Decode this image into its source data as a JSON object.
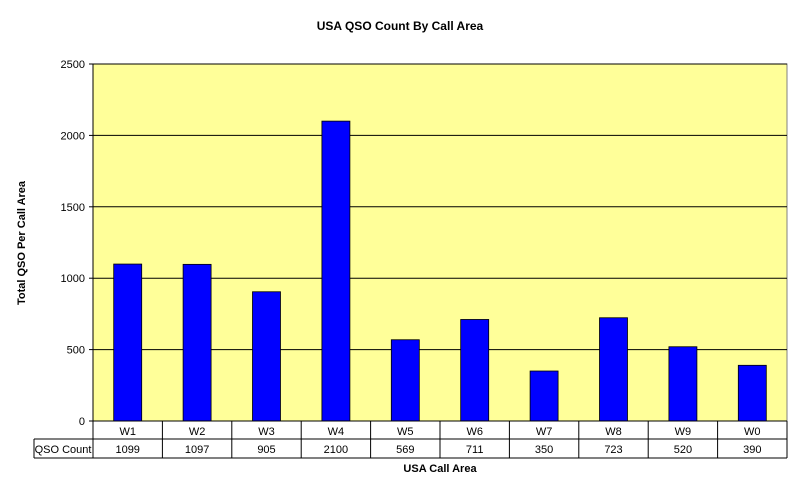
{
  "chart_data": {
    "type": "bar",
    "title": "USA QSO Count By Call Area",
    "xlabel": "USA Call Area",
    "ylabel": "Total QSO Per Call Area",
    "categories": [
      "W1",
      "W2",
      "W3",
      "W4",
      "W5",
      "W6",
      "W7",
      "W8",
      "W9",
      "W0"
    ],
    "series": [
      {
        "name": "QSO Count",
        "values": [
          1099,
          1097,
          905,
          2100,
          569,
          711,
          350,
          723,
          520,
          390
        ]
      }
    ],
    "ylim": [
      0,
      2500
    ],
    "yticks": [
      0,
      500,
      1000,
      1500,
      2000,
      2500
    ],
    "grid": true,
    "data_table": true,
    "colors": {
      "bar": "#0000FF",
      "plot_bg": "#FFFF99",
      "grid": "#000000"
    }
  }
}
